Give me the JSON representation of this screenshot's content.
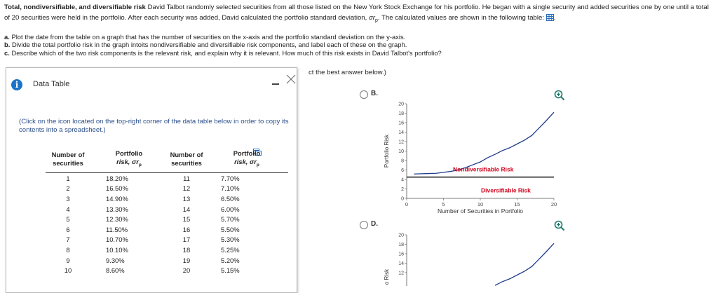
{
  "problem": {
    "title": "Total, nondiversifiable, and diversifiable risk",
    "text": "David Talbot randomly selected securities from all those listed on the New York Stock Exchange for his portfolio. He began with a single security and added securities one by one until a total of 20 securities were held in the portfolio. After each security was added, David calculated the portfolio standard deviation,",
    "symbol": "σr",
    "symbol_sub": "p",
    "text_after": ". The calculated values are shown in the following table:",
    "trailing": "."
  },
  "parts": [
    {
      "letter": "a.",
      "text": "Plot the date from the table on a graph that has the number of securities on the x-axis and the portfolio standard deviation on the y-axis."
    },
    {
      "letter": "b.",
      "text": "Divide the total portfolio risk in the graph intoits nondiversifiable and diversifiable risk components, and label each of these on the graph."
    },
    {
      "letter": "c.",
      "text": "Describe which of the two risk components is the relevant risk, and explain why it is relevant. How much of this risk exists in David Talbot's portfolio?"
    }
  ],
  "select_hint": "ct the best answer below.)",
  "dialog": {
    "title": "Data Table",
    "note": "(Click on the icon located on the top-right corner of the data table below in order to copy its contents into a spreadsheet.)",
    "headers": {
      "n_line1": "Number of",
      "n_line2": "securities",
      "r_line1": "Portfolio",
      "r_line2": "risk, σr",
      "r_sub": "p"
    },
    "rows": [
      [
        "1",
        "18.20%",
        "11",
        "7.70%"
      ],
      [
        "2",
        "16.50%",
        "12",
        "7.10%"
      ],
      [
        "3",
        "14.90%",
        "13",
        "6.50%"
      ],
      [
        "4",
        "13.30%",
        "14",
        "6.00%"
      ],
      [
        "5",
        "12.30%",
        "15",
        "5.70%"
      ],
      [
        "6",
        "11.50%",
        "16",
        "5.50%"
      ],
      [
        "7",
        "10.70%",
        "17",
        "5.30%"
      ],
      [
        "8",
        "10.10%",
        "18",
        "5.25%"
      ],
      [
        "9",
        "9.30%",
        "19",
        "5.20%"
      ],
      [
        "10",
        "8.60%",
        "20",
        "5.15%"
      ]
    ]
  },
  "options": [
    {
      "letter": "B."
    },
    {
      "letter": "D."
    }
  ],
  "chart_data": [
    {
      "type": "line",
      "option": "B",
      "x": [
        1,
        2,
        3,
        4,
        5,
        6,
        7,
        8,
        9,
        10,
        11,
        12,
        13,
        14,
        15,
        16,
        17,
        18,
        19,
        20
      ],
      "series": [
        {
          "values": [
            5.15,
            5.2,
            5.25,
            5.3,
            5.5,
            5.7,
            6.0,
            6.5,
            7.1,
            7.7,
            8.6,
            9.3,
            10.1,
            10.7,
            11.5,
            12.3,
            13.3,
            14.9,
            16.5,
            18.2
          ]
        }
      ],
      "hline": 4.5,
      "xlim": [
        0,
        20
      ],
      "ylim": [
        0,
        20
      ],
      "xticks": [
        0,
        5,
        10,
        15,
        20
      ],
      "yticks": [
        0,
        2,
        4,
        6,
        8,
        10,
        12,
        14,
        16,
        18,
        20
      ],
      "xlabel": "Number of Securities in Portfolio",
      "ylabel": "Portfolio Risk",
      "annotations": [
        "Nondiversifiable Risk",
        "Diversifiable Risk"
      ],
      "annotation_color": "#d0021b",
      "line_color": "#1f3b8a"
    },
    {
      "type": "line",
      "option": "D",
      "x": [
        12,
        13,
        14,
        15,
        16,
        17,
        18,
        19,
        20
      ],
      "series": [
        {
          "values": [
            9.3,
            10.1,
            10.7,
            11.5,
            12.3,
            13.3,
            14.9,
            16.5,
            18.2
          ]
        }
      ],
      "ylim": [
        0,
        20
      ],
      "yticks": [
        12,
        14,
        16,
        18,
        20
      ],
      "ylabel": "o Risk",
      "line_color": "#1f3b8a"
    }
  ]
}
